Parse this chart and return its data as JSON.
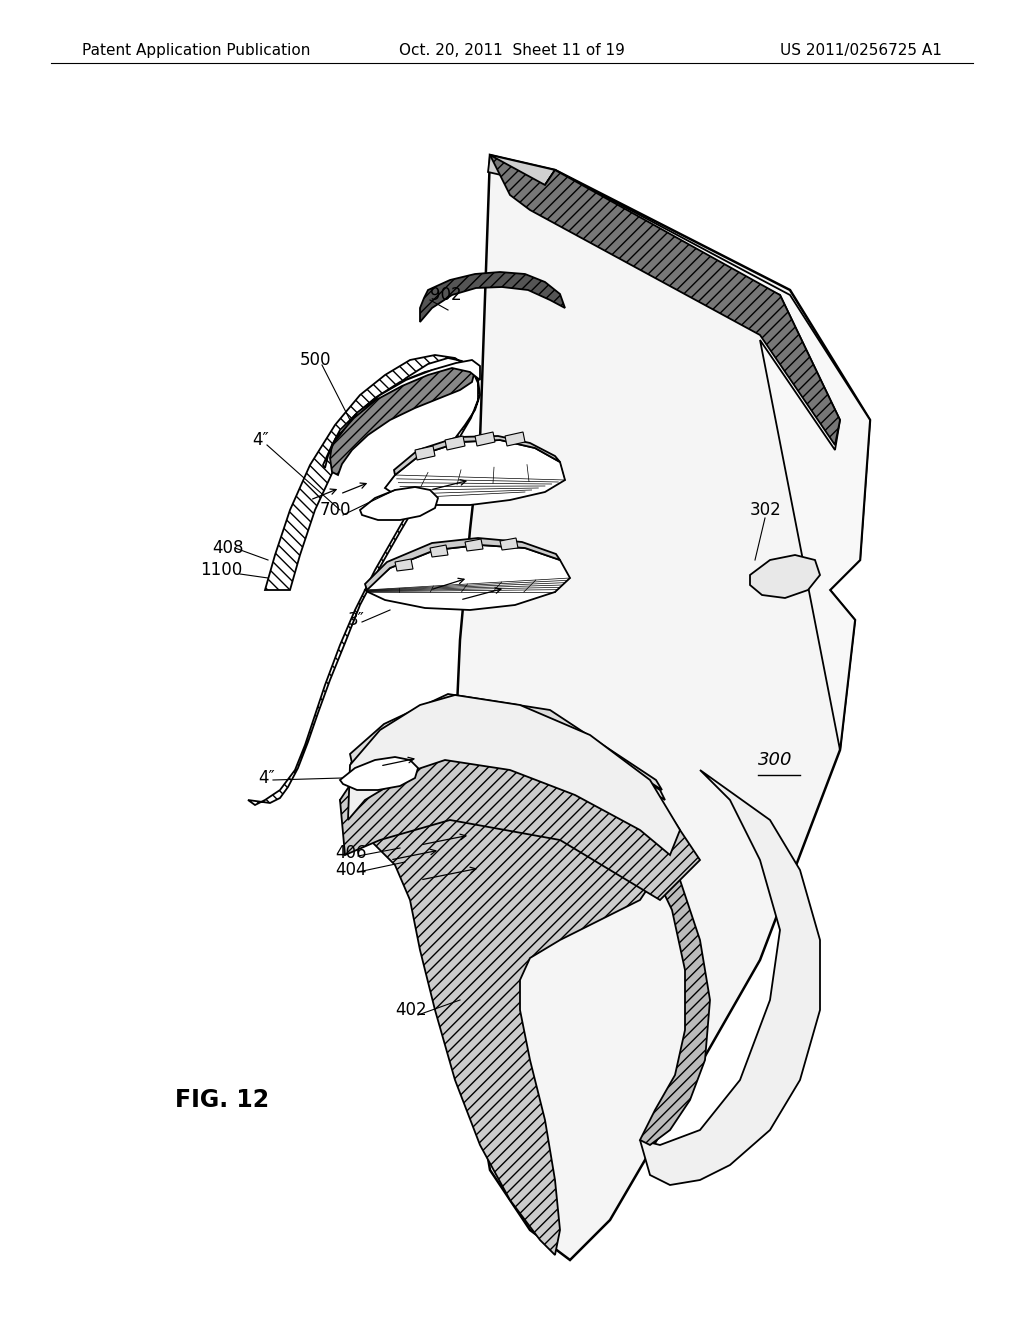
{
  "header_left": "Patent Application Publication",
  "header_mid": "Oct. 20, 2011  Sheet 11 of 19",
  "header_right": "US 2011/0256725 A1",
  "figure_label": "FIG. 12",
  "bg_color": "#ffffff",
  "header_fontsize": 11,
  "label_fontsize": 12,
  "fig_label_fontsize": 17
}
